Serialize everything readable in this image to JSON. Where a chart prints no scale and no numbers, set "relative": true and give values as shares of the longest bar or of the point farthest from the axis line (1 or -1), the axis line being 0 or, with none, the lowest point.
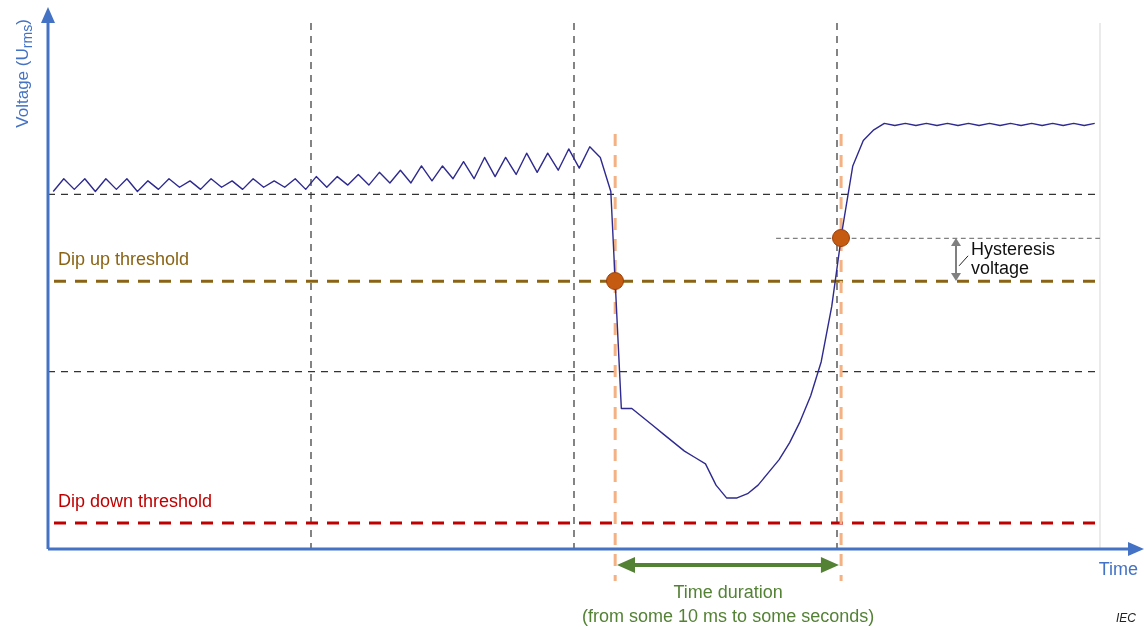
{
  "chart_data": {
    "type": "line",
    "relative": true,
    "xlabel": "Time",
    "ylabel": "Voltage (U$_{rms}$)",
    "tick_labels": false,
    "grid": true,
    "categories": [
      null,
      null,
      null,
      null,
      null,
      null,
      null,
      null,
      null,
      null,
      null,
      null,
      null,
      null,
      null,
      null,
      null,
      null,
      null,
      null,
      null,
      null,
      null,
      null,
      null,
      null,
      null,
      null,
      null,
      null,
      null,
      null,
      null,
      null,
      null,
      null,
      null,
      null,
      null,
      null,
      null,
      null,
      null,
      null,
      null,
      null,
      null,
      null,
      null,
      null,
      null,
      null,
      null,
      null,
      null,
      null,
      null,
      null,
      null,
      null,
      null,
      null,
      null,
      null,
      null,
      null,
      null,
      null,
      null,
      null,
      null,
      null,
      null,
      null,
      null,
      null,
      null,
      null,
      null,
      null,
      null,
      null,
      null,
      null,
      null,
      null,
      null,
      null,
      null,
      null,
      null,
      null,
      null,
      null,
      null,
      null,
      null,
      null,
      null,
      null
    ],
    "series": [
      {
        "color": "#2e2a8f",
        "values": [
          0.84,
          0.87,
          0.845,
          0.87,
          0.84,
          0.87,
          0.845,
          0.87,
          0.84,
          0.865,
          0.845,
          0.87,
          0.85,
          0.865,
          0.845,
          0.87,
          0.85,
          0.865,
          0.845,
          0.87,
          0.85,
          0.865,
          0.85,
          0.87,
          0.845,
          0.875,
          0.85,
          0.875,
          0.855,
          0.88,
          0.855,
          0.885,
          0.86,
          0.89,
          0.86,
          0.9,
          0.865,
          0.9,
          0.87,
          0.91,
          0.87,
          0.92,
          0.875,
          0.92,
          0.88,
          0.93,
          0.885,
          0.93,
          0.89,
          0.94,
          0.895,
          0.945,
          0.92,
          0.84,
          0.33,
          0.33,
          0.31,
          0.29,
          0.27,
          0.25,
          0.23,
          0.215,
          0.2,
          0.15,
          0.12,
          0.12,
          0.13,
          0.15,
          0.18,
          0.21,
          0.25,
          0.3,
          0.36,
          0.44,
          0.57,
          0.75,
          0.9,
          0.96,
          0.985,
          1.0,
          0.995,
          1.0,
          0.995,
          1.0,
          0.995,
          1.0,
          0.995,
          1.0,
          0.995,
          1.0,
          0.995,
          1.0,
          0.995,
          1.0,
          0.995,
          1.0,
          0.995,
          1.0,
          0.995,
          1.0
        ]
      }
    ],
    "ref_lines": [
      {
        "axis": "y",
        "value": 0.629,
        "label": "Dip up threshold",
        "color": "#8a6414",
        "line_style": "dashed"
      },
      {
        "axis": "y",
        "value": 0.061,
        "label": "Dip down threshold",
        "color": "#c00000",
        "line_style": "dashed"
      },
      {
        "axis": "y",
        "value": 0.73,
        "color": "#808080",
        "line_style": "dashed"
      }
    ],
    "annotations": [
      "Hysteresis voltage",
      "Time duration",
      "(from some 10 ms to some seconds)",
      "IEC"
    ]
  }
}
